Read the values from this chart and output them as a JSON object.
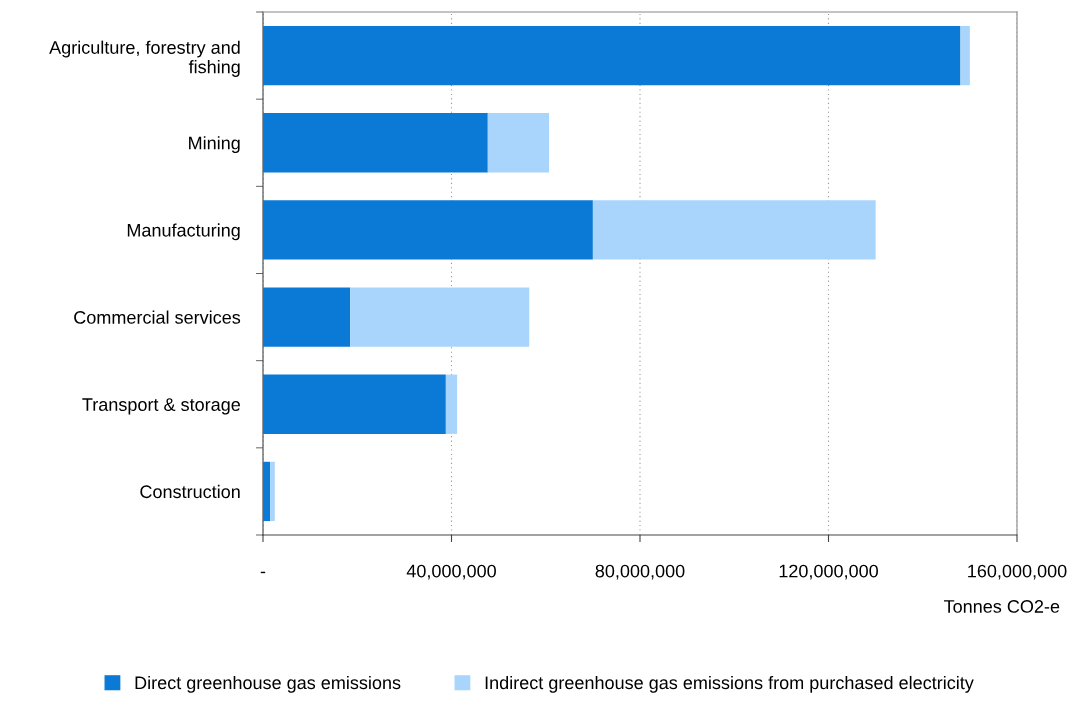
{
  "chart_data": {
    "type": "bar",
    "orientation": "horizontal",
    "stacked": true,
    "categories": [
      "Agriculture, forestry and\nfishing",
      "Mining",
      "Manufacturing",
      "Commercial services",
      "Transport & storage",
      "Construction"
    ],
    "series": [
      {
        "name": "Direct greenhouse gas emissions",
        "color": "#0a7ad6",
        "values": [
          148000000,
          47700000,
          70000000,
          18500000,
          38800000,
          1500000
        ]
      },
      {
        "name": "Indirect greenhouse gas emissions from purchased electricity",
        "color": "#a9d5fc",
        "values": [
          2000000,
          13000000,
          60000000,
          38000000,
          2400000,
          1000000
        ]
      }
    ],
    "xlim": [
      0,
      160000000
    ],
    "xticks": [
      {
        "value": 0,
        "label": "-"
      },
      {
        "value": 40000000,
        "label": "40,000,000"
      },
      {
        "value": 80000000,
        "label": "80,000,000"
      },
      {
        "value": 120000000,
        "label": "120,000,000"
      },
      {
        "value": 160000000,
        "label": "160,000,000"
      }
    ],
    "xlabel": "Tonnes CO2-e",
    "grid": "x",
    "legend": "bottom"
  }
}
